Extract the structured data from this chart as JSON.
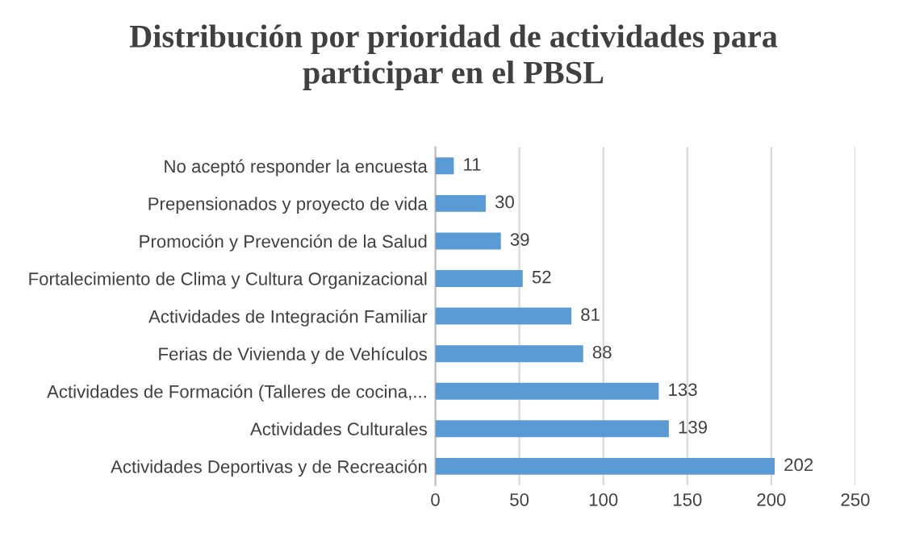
{
  "chart_data": {
    "type": "bar",
    "orientation": "horizontal",
    "title": "Distribución por prioridad de actividades para\nparticipar en el PBSL",
    "categories": [
      "No aceptó responder la encuesta",
      "Prepensionados y proyecto de vida",
      "Promoción y Prevención de la Salud",
      "Fortalecimiento de Clima y Cultura Organizacional",
      "Actividades de Integración Familiar",
      "Ferias de Vivienda y de Vehículos",
      "Actividades de Formación (Talleres de cocina,...",
      "Actividades Culturales",
      "Actividades Deportivas y de Recreación"
    ],
    "values": [
      11,
      30,
      39,
      52,
      81,
      88,
      133,
      139,
      202
    ],
    "color": "#5b9bd5",
    "xlim": [
      0,
      250
    ],
    "xticks": [
      0,
      50,
      100,
      150,
      200,
      250
    ],
    "grid": "x",
    "data_labels": true
  }
}
